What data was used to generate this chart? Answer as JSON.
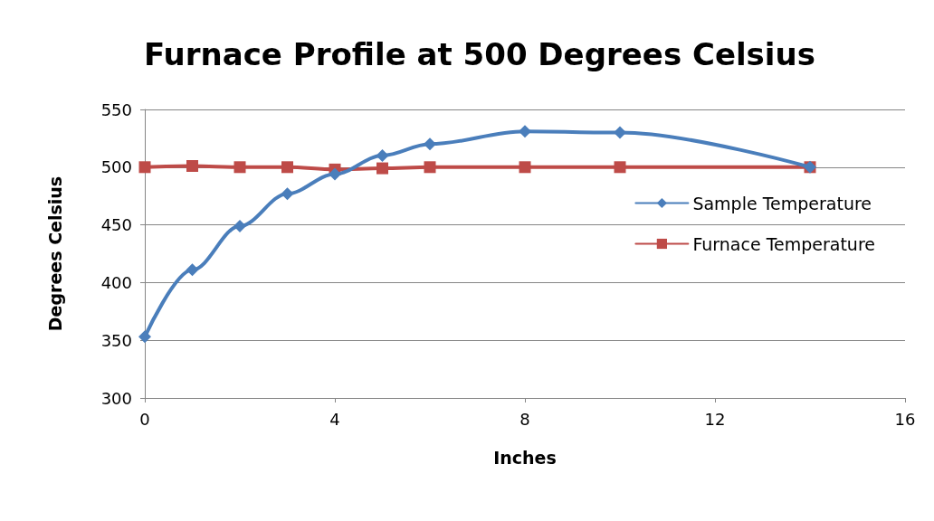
{
  "chart_data": {
    "type": "line",
    "title": "Furnace Profile at 500 Degrees Celsius",
    "xlabel": "Inches",
    "ylabel": "Degrees Celsius",
    "series": [
      {
        "name": "Sample Temperature",
        "color": "#4a7ebb",
        "marker": "diamond",
        "x": [
          0,
          1,
          2,
          3,
          4,
          5,
          6,
          8,
          10,
          14
        ],
        "values": [
          353,
          411,
          449,
          477,
          494,
          510,
          520,
          531,
          530,
          500
        ]
      },
      {
        "name": "Furnace Temperature",
        "color": "#be4b48",
        "marker": "square",
        "x": [
          0,
          1,
          2,
          3,
          4,
          5,
          6,
          8,
          10,
          14
        ],
        "values": [
          500,
          501,
          500,
          500,
          498,
          499,
          500,
          500,
          500,
          500
        ]
      }
    ],
    "xlim": [
      0,
      16
    ],
    "xticks": [
      0,
      4,
      8,
      12,
      16
    ],
    "ylim": [
      300,
      550
    ],
    "yticks": [
      300,
      350,
      400,
      450,
      500,
      550
    ],
    "grid": "y",
    "legend": "right",
    "line_style": "solid"
  }
}
